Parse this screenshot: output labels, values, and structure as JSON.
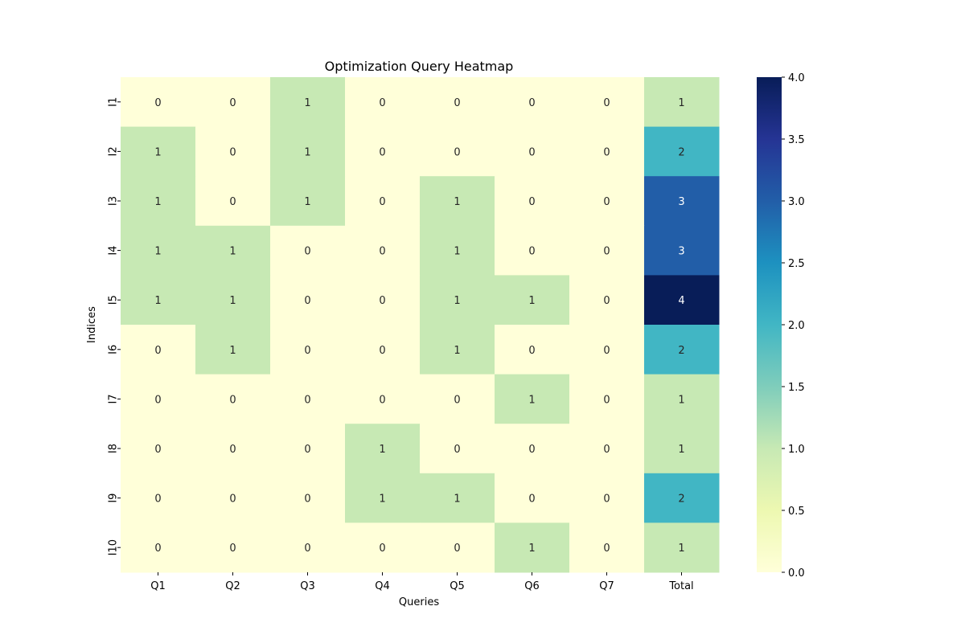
{
  "chart_data": {
    "type": "heatmap",
    "title": "Optimization Query Heatmap",
    "xlabel": "Queries",
    "ylabel": "Indices",
    "x_categories": [
      "Q1",
      "Q2",
      "Q3",
      "Q4",
      "Q5",
      "Q6",
      "Q7",
      "Total"
    ],
    "y_categories": [
      "I1",
      "I2",
      "I3",
      "I4",
      "I5",
      "I6",
      "I7",
      "I8",
      "I9",
      "I10"
    ],
    "values": [
      [
        0,
        0,
        1,
        0,
        0,
        0,
        0,
        1
      ],
      [
        1,
        0,
        1,
        0,
        0,
        0,
        0,
        2
      ],
      [
        1,
        0,
        1,
        0,
        1,
        0,
        0,
        3
      ],
      [
        1,
        1,
        0,
        0,
        1,
        0,
        0,
        3
      ],
      [
        1,
        1,
        0,
        0,
        1,
        1,
        0,
        4
      ],
      [
        0,
        1,
        0,
        0,
        1,
        0,
        0,
        2
      ],
      [
        0,
        0,
        0,
        0,
        0,
        1,
        0,
        1
      ],
      [
        0,
        0,
        0,
        1,
        0,
        0,
        0,
        1
      ],
      [
        0,
        0,
        0,
        1,
        1,
        0,
        0,
        2
      ],
      [
        0,
        0,
        0,
        0,
        0,
        1,
        0,
        1
      ]
    ],
    "colorbar": {
      "min": 0,
      "max": 4,
      "ticks": [
        "0.0",
        "0.5",
        "1.0",
        "1.5",
        "2.0",
        "2.5",
        "3.0",
        "3.5",
        "4.0"
      ],
      "colormap": "YlGnBu"
    },
    "annotations": true,
    "grid": false
  }
}
